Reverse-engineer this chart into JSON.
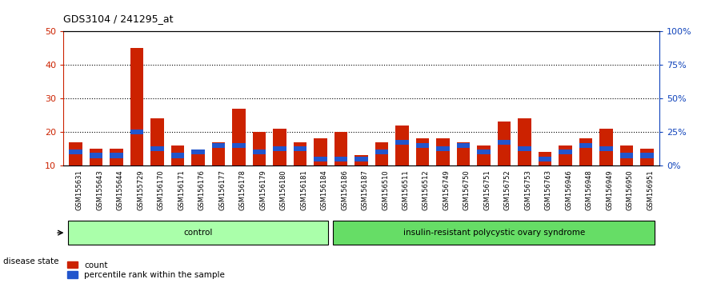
{
  "title": "GDS3104 / 241295_at",
  "samples": [
    "GSM155631",
    "GSM155643",
    "GSM155644",
    "GSM155729",
    "GSM156170",
    "GSM156171",
    "GSM156176",
    "GSM156177",
    "GSM156178",
    "GSM156179",
    "GSM156180",
    "GSM156181",
    "GSM156184",
    "GSM156186",
    "GSM156187",
    "GSM156510",
    "GSM156511",
    "GSM156512",
    "GSM156749",
    "GSM156750",
    "GSM156751",
    "GSM156752",
    "GSM156753",
    "GSM156763",
    "GSM156946",
    "GSM156948",
    "GSM156949",
    "GSM156950",
    "GSM156951"
  ],
  "count_values": [
    17,
    15,
    15,
    45,
    24,
    16,
    14,
    17,
    27,
    20,
    21,
    17,
    18,
    20,
    13,
    17,
    22,
    18,
    18,
    17,
    16,
    23,
    24,
    14,
    16,
    18,
    21,
    16,
    15
  ],
  "percentile_values": [
    14,
    13,
    13,
    20,
    15,
    13,
    14,
    16,
    16,
    14,
    15,
    15,
    12,
    12,
    12,
    14,
    17,
    16,
    15,
    16,
    14,
    17,
    15,
    12,
    14,
    16,
    15,
    13,
    13
  ],
  "group_labels": [
    "control",
    "insulin-resistant polycystic ovary syndrome"
  ],
  "group_sizes": [
    13,
    16
  ],
  "group_colors_light": [
    "#AAFFAA",
    "#66DD66"
  ],
  "bar_color_red": "#CC2200",
  "bar_color_blue": "#2255CC",
  "ylim_left": [
    10,
    50
  ],
  "ylim_right": [
    0,
    100
  ],
  "yticks_left": [
    10,
    20,
    30,
    40,
    50
  ],
  "yticks_right": [
    0,
    25,
    50,
    75,
    100
  ],
  "ytick_labels_right": [
    "0%",
    "25%",
    "50%",
    "75%",
    "100%"
  ],
  "left_axis_color": "#CC2200",
  "right_axis_color": "#1144BB",
  "disease_state_label": "disease state",
  "legend_count_label": "count",
  "legend_percentile_label": "percentile rank within the sample",
  "xticklabel_bg": "#CCCCCC",
  "blue_bar_height": 1.5
}
